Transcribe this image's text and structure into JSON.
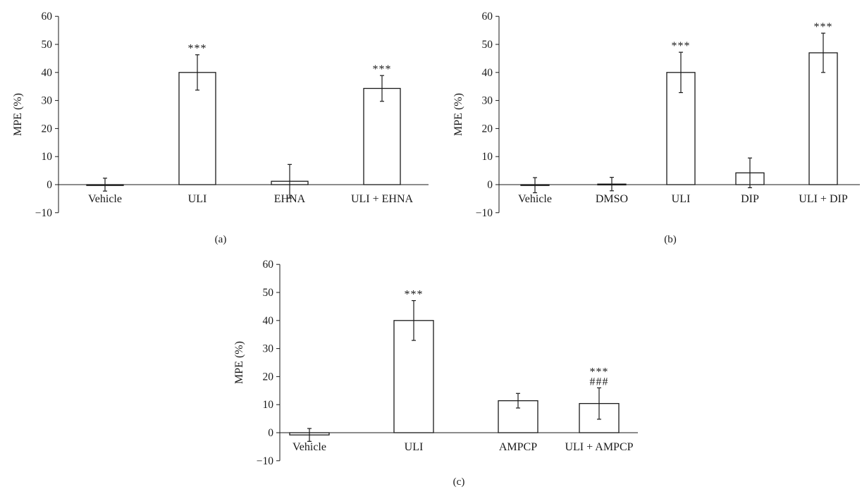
{
  "chart_data": [
    {
      "type": "bar",
      "panel_label": "(a)",
      "ylabel": "MPE (%)",
      "ylim": [
        -10,
        60
      ],
      "yticks": [
        -10,
        0,
        10,
        20,
        30,
        40,
        50,
        60
      ],
      "categories": [
        "Vehicle",
        "ULI",
        "EHNA",
        "ULI + EHNA"
      ],
      "values": [
        0,
        40,
        1.2,
        34.3
      ],
      "error": [
        2.3,
        6.3,
        6.0,
        4.6
      ],
      "significance": [
        [],
        [
          "***"
        ],
        [],
        [
          "***"
        ]
      ]
    },
    {
      "type": "bar",
      "panel_label": "(b)",
      "ylabel": "MPE (%)",
      "ylim": [
        -10,
        60
      ],
      "yticks": [
        -10,
        0,
        10,
        20,
        30,
        40,
        50,
        60
      ],
      "categories": [
        "Vehicle",
        "DMSO",
        "ULI",
        "DIP",
        "ULI + DIP"
      ],
      "values": [
        -0.2,
        0.2,
        40,
        4.2,
        47
      ],
      "error": [
        2.7,
        2.4,
        7.2,
        5.3,
        7.0
      ],
      "significance": [
        [],
        [],
        [
          "***"
        ],
        [],
        [
          "***"
        ]
      ]
    },
    {
      "type": "bar",
      "panel_label": "(c)",
      "ylabel": "MPE (%)",
      "ylim": [
        -10,
        60
      ],
      "yticks": [
        -10,
        0,
        10,
        20,
        30,
        40,
        50,
        60
      ],
      "categories": [
        "Vehicle",
        "ULI",
        "AMPCP",
        "ULI + AMPCP"
      ],
      "values": [
        -0.8,
        40,
        11.4,
        10.4
      ],
      "error": [
        2.3,
        7.1,
        2.6,
        5.6
      ],
      "significance": [
        [],
        [
          "***"
        ],
        [],
        [
          "***",
          "###"
        ]
      ]
    }
  ]
}
